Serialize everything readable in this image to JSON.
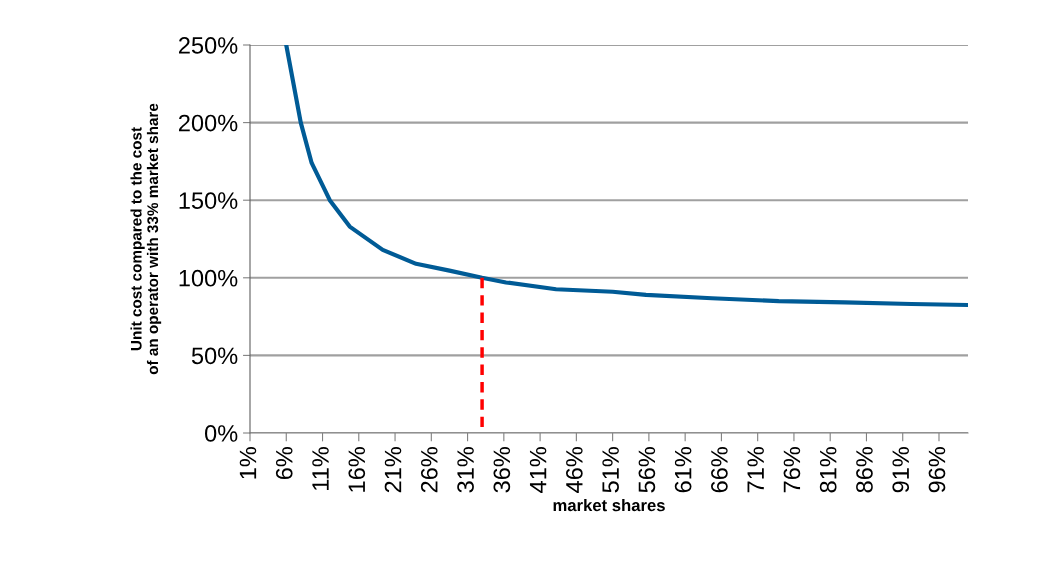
{
  "chart_data": {
    "type": "line",
    "xlabel": "market shares",
    "ylabel": "Unit cost compared to the cost\nof an operator with 33% market share",
    "x": [
      6,
      8,
      9.5,
      12,
      14.75,
      19.3,
      23.9,
      28.5,
      33,
      36.3,
      43.2,
      51,
      55.6,
      64.7,
      73.9,
      83,
      92.2,
      100
    ],
    "series": [
      {
        "color": "#005b96",
        "values": [
          250,
          200,
          174,
          150,
          133,
          118,
          109,
          104.6,
          100,
          97,
          92.6,
          91,
          89,
          86.8,
          85,
          84.2,
          83.1,
          82.5
        ]
      },
      {
        "type": "line",
        "color": "#ff0000",
        "line_style": "dashed",
        "x": [
          33,
          33
        ],
        "values": [
          0,
          100
        ]
      }
    ],
    "xlim": [
      1,
      100
    ],
    "xticks": [
      {
        "value": 1,
        "label": "1%"
      },
      {
        "value": 6,
        "label": "6%"
      },
      {
        "value": 11,
        "label": "11%"
      },
      {
        "value": 16,
        "label": "16%"
      },
      {
        "value": 21,
        "label": "21%"
      },
      {
        "value": 26,
        "label": "26%"
      },
      {
        "value": 31,
        "label": "31%"
      },
      {
        "value": 36,
        "label": "36%"
      },
      {
        "value": 41,
        "label": "41%"
      },
      {
        "value": 46,
        "label": "46%"
      },
      {
        "value": 51,
        "label": "51%"
      },
      {
        "value": 56,
        "label": "56%"
      },
      {
        "value": 61,
        "label": "61%"
      },
      {
        "value": 66,
        "label": "66%"
      },
      {
        "value": 71,
        "label": "71%"
      },
      {
        "value": 76,
        "label": "76%"
      },
      {
        "value": 81,
        "label": "81%"
      },
      {
        "value": 86,
        "label": "86%"
      },
      {
        "value": 91,
        "label": "91%"
      },
      {
        "value": 96,
        "label": "96%"
      }
    ],
    "ylim": [
      0,
      250
    ],
    "yticks": [
      {
        "value": 0,
        "label": "0%"
      },
      {
        "value": 50,
        "label": "50%"
      },
      {
        "value": 100,
        "label": "100%"
      },
      {
        "value": 150,
        "label": "150%"
      },
      {
        "value": 200,
        "label": "200%"
      },
      {
        "value": 250,
        "label": "250%"
      }
    ],
    "grid": "y"
  }
}
